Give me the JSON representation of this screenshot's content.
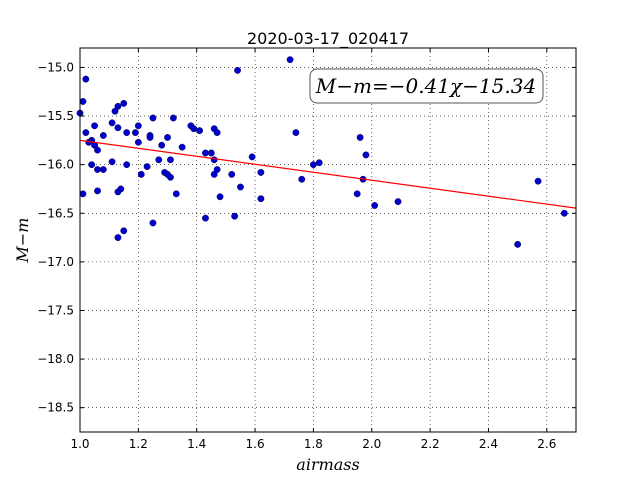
{
  "chart_data": {
    "type": "scatter",
    "title": "2020-03-17_020417",
    "xlabel": "airmass",
    "ylabel": "M−m",
    "annotation": "M−m=−0.41χ−15.34",
    "xlim": [
      1.0,
      2.7
    ],
    "ylim": [
      -18.75,
      -14.8
    ],
    "y_inverted": true,
    "grid": true,
    "xticks": [
      1.0,
      1.2,
      1.4,
      1.6,
      1.8,
      2.0,
      2.2,
      2.4,
      2.6
    ],
    "xtick_labels": [
      "1.0",
      "1.2",
      "1.4",
      "1.6",
      "1.8",
      "2.0",
      "2.2",
      "2.4",
      "2.6"
    ],
    "yticks": [
      -15.0,
      -15.5,
      -16.0,
      -16.5,
      -17.0,
      -17.5,
      -18.0,
      -18.5
    ],
    "ytick_labels": [
      "−15.0",
      "−15.5",
      "−16.0",
      "−16.5",
      "−17.0",
      "−17.5",
      "−18.0",
      "−18.5"
    ],
    "points": [
      [
        1.0,
        -15.47
      ],
      [
        1.01,
        -15.35
      ],
      [
        1.02,
        -15.12
      ],
      [
        1.02,
        -15.67
      ],
      [
        1.01,
        -16.3
      ],
      [
        1.03,
        -15.77
      ],
      [
        1.04,
        -15.75
      ],
      [
        1.04,
        -16.0
      ],
      [
        1.05,
        -15.6
      ],
      [
        1.05,
        -15.8
      ],
      [
        1.06,
        -15.85
      ],
      [
        1.06,
        -16.05
      ],
      [
        1.06,
        -16.27
      ],
      [
        1.08,
        -15.7
      ],
      [
        1.08,
        -16.05
      ],
      [
        1.11,
        -15.57
      ],
      [
        1.11,
        -15.97
      ],
      [
        1.12,
        -15.45
      ],
      [
        1.13,
        -15.4
      ],
      [
        1.13,
        -15.62
      ],
      [
        1.13,
        -16.28
      ],
      [
        1.13,
        -16.75
      ],
      [
        1.14,
        -16.25
      ],
      [
        1.15,
        -15.37
      ],
      [
        1.15,
        -16.68
      ],
      [
        1.16,
        -15.67
      ],
      [
        1.16,
        -16.0
      ],
      [
        1.19,
        -15.67
      ],
      [
        1.2,
        -15.6
      ],
      [
        1.2,
        -15.77
      ],
      [
        1.21,
        -16.1
      ],
      [
        1.23,
        -16.02
      ],
      [
        1.24,
        -15.7
      ],
      [
        1.24,
        -15.72
      ],
      [
        1.25,
        -15.52
      ],
      [
        1.25,
        -16.6
      ],
      [
        1.27,
        -15.95
      ],
      [
        1.28,
        -15.8
      ],
      [
        1.29,
        -16.08
      ],
      [
        1.3,
        -15.72
      ],
      [
        1.3,
        -16.1
      ],
      [
        1.31,
        -15.95
      ],
      [
        1.31,
        -16.13
      ],
      [
        1.32,
        -15.52
      ],
      [
        1.33,
        -16.3
      ],
      [
        1.35,
        -15.82
      ],
      [
        1.38,
        -15.6
      ],
      [
        1.39,
        -15.63
      ],
      [
        1.41,
        -15.65
      ],
      [
        1.43,
        -15.88
      ],
      [
        1.43,
        -16.55
      ],
      [
        1.45,
        -15.88
      ],
      [
        1.46,
        -15.63
      ],
      [
        1.46,
        -15.95
      ],
      [
        1.46,
        -16.1
      ],
      [
        1.47,
        -15.67
      ],
      [
        1.47,
        -16.05
      ],
      [
        1.48,
        -16.33
      ],
      [
        1.52,
        -16.1
      ],
      [
        1.53,
        -16.53
      ],
      [
        1.54,
        -15.03
      ],
      [
        1.55,
        -16.23
      ],
      [
        1.59,
        -15.92
      ],
      [
        1.62,
        -16.08
      ],
      [
        1.62,
        -16.35
      ],
      [
        1.72,
        -14.92
      ],
      [
        1.74,
        -15.67
      ],
      [
        1.76,
        -16.15
      ],
      [
        1.8,
        -16.0
      ],
      [
        1.82,
        -15.98
      ],
      [
        1.95,
        -16.3
      ],
      [
        1.96,
        -15.72
      ],
      [
        1.97,
        -16.15
      ],
      [
        1.98,
        -15.9
      ],
      [
        2.01,
        -16.42
      ],
      [
        2.09,
        -16.38
      ],
      [
        2.5,
        -16.82
      ],
      [
        2.57,
        -16.17
      ],
      [
        2.66,
        -16.5
      ]
    ],
    "fit": {
      "slope": -0.41,
      "intercept": -15.34,
      "x_range": [
        1.0,
        2.7
      ],
      "color": "#ff0000"
    },
    "point_color": "#0000cc"
  }
}
